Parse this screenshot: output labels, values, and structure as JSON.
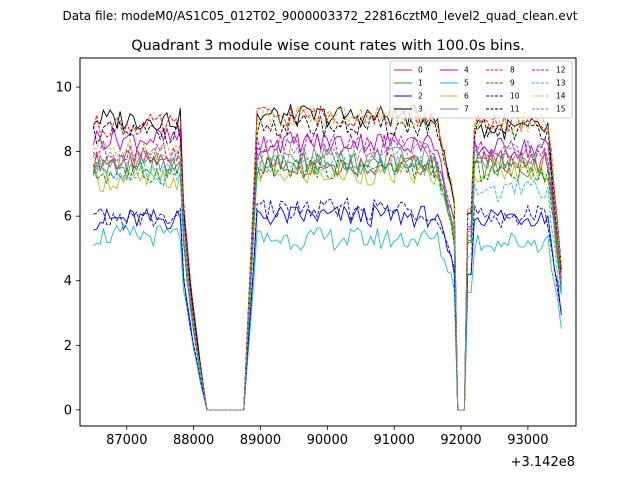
{
  "chart_data": {
    "type": "line",
    "suptitle": "Data file: modeM0/AS1C05_012T02_9000003372_22816cztM0_level2_quad_clean.evt",
    "title": "Quadrant 3 module wise count rates with 100.0s bins.",
    "xlabel": "",
    "ylabel": "",
    "x_offset_label": "+3.142e8",
    "xlim": [
      86300,
      93720
    ],
    "ylim": [
      -0.5,
      10.9
    ],
    "x_ticks": [
      87000,
      88000,
      89000,
      90000,
      91000,
      92000,
      93000
    ],
    "y_ticks": [
      0,
      2,
      4,
      6,
      8,
      10
    ],
    "legend_position": "top-right",
    "segments": [
      {
        "start": 86500,
        "end": 87800,
        "sparse_end": 88200
      },
      {
        "start": 88900,
        "end": 91600
      },
      {
        "start": 91600,
        "end": 91900
      },
      {
        "start": 92100,
        "end": 93500
      }
    ],
    "series": [
      {
        "name": "0",
        "color": "#d62728",
        "dash": "solid",
        "base": [
          7.7,
          7.6,
          7.8,
          7.7
        ]
      },
      {
        "name": "1",
        "color": "#2ca02c",
        "dash": "solid",
        "base": [
          7.5,
          7.6,
          7.8,
          7.5
        ]
      },
      {
        "name": "2",
        "color": "#0000ff",
        "dash": "solid",
        "base": [
          5.9,
          6.0,
          6.1,
          6.0
        ]
      },
      {
        "name": "3",
        "color": "#000000",
        "dash": "solid",
        "base": [
          9.0,
          9.1,
          9.2,
          8.7
        ]
      },
      {
        "name": "4",
        "color": "#c000c0",
        "dash": "solid",
        "base": [
          8.4,
          8.3,
          8.3,
          8.1
        ]
      },
      {
        "name": "5",
        "color": "#17becf",
        "dash": "solid",
        "base": [
          5.4,
          5.3,
          5.5,
          5.2
        ]
      },
      {
        "name": "6",
        "color": "#bcbd22",
        "dash": "solid",
        "base": [
          7.1,
          7.3,
          7.5,
          7.4
        ]
      },
      {
        "name": "7",
        "color": "#7f7f7f",
        "dash": "solid",
        "base": [
          7.6,
          7.8,
          8.0,
          7.7
        ]
      },
      {
        "name": "8",
        "color": "#ff0000",
        "dash": "dashed",
        "base": [
          8.8,
          9.1,
          9.3,
          8.9
        ]
      },
      {
        "name": "9",
        "color": "#008000",
        "dash": "dashed",
        "base": [
          7.3,
          7.5,
          7.6,
          7.4
        ]
      },
      {
        "name": "10",
        "color": "#0000cd",
        "dash": "dashed",
        "base": [
          5.9,
          6.2,
          6.3,
          6.0
        ]
      },
      {
        "name": "11",
        "color": "#000000",
        "dash": "dashed",
        "base": [
          8.6,
          8.8,
          9.0,
          8.7
        ]
      },
      {
        "name": "12",
        "color": "#c000c0",
        "dash": "dashed",
        "base": [
          8.0,
          8.2,
          8.3,
          8.0
        ]
      },
      {
        "name": "13",
        "color": "#17becf",
        "dash": "dashed",
        "base": [
          7.4,
          7.6,
          7.7,
          6.8
        ]
      },
      {
        "name": "14",
        "color": "#bcbd22",
        "dash": "dashed",
        "base": [
          8.1,
          9.1,
          9.3,
          8.9
        ]
      },
      {
        "name": "15",
        "color": "#7f7f7f",
        "dash": "dashed",
        "base": [
          7.8,
          7.9,
          8.1,
          7.9
        ]
      }
    ]
  }
}
